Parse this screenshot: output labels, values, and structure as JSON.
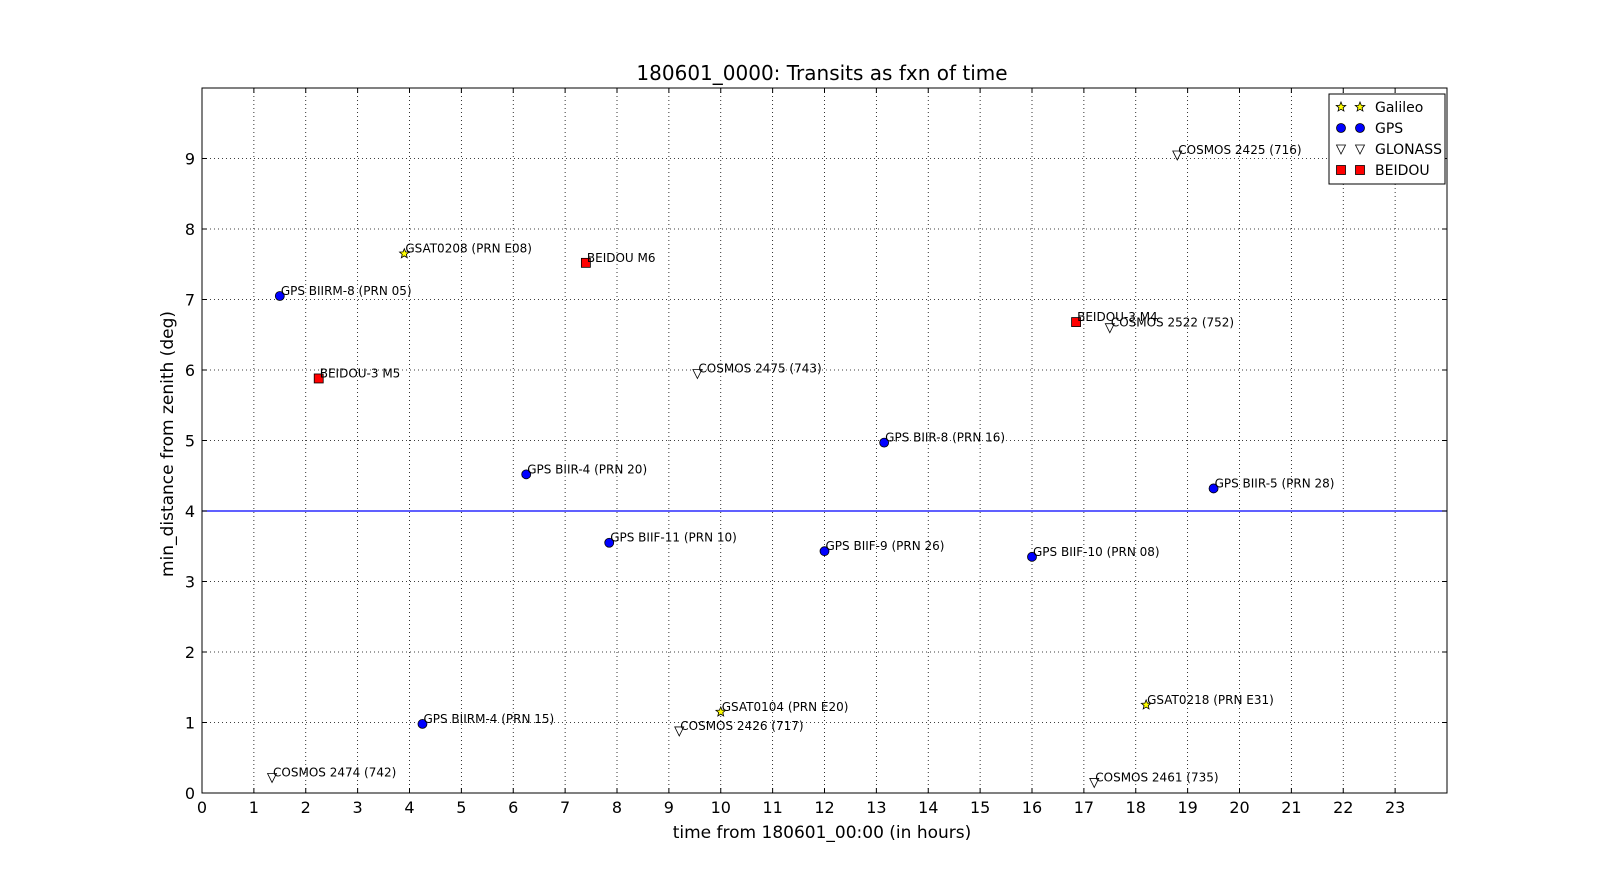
{
  "chart_data": {
    "type": "scatter",
    "title": "180601_0000: Transits as fxn of time",
    "xlabel": "time from 180601_00:00 (in hours)",
    "ylabel": "min_distance from zenith (deg)",
    "xlim": [
      0,
      24
    ],
    "ylim": [
      0,
      10
    ],
    "xticks": [
      0,
      1,
      2,
      3,
      4,
      5,
      6,
      7,
      8,
      9,
      10,
      11,
      12,
      13,
      14,
      15,
      16,
      17,
      18,
      19,
      20,
      21,
      22,
      23
    ],
    "yticks": [
      0,
      1,
      2,
      3,
      4,
      5,
      6,
      7,
      8,
      9
    ],
    "grid": true,
    "threshold_line": {
      "y": 4,
      "color": "#0000ff"
    },
    "legend_position": "top-right",
    "series": [
      {
        "name": "Galileo",
        "marker": "star",
        "color": "#ffff00",
        "points": [
          {
            "x": 3.9,
            "y": 7.65,
            "label": "GSAT0208 (PRN E08)"
          },
          {
            "x": 10.0,
            "y": 1.15,
            "label": "GSAT0104 (PRN E20)"
          },
          {
            "x": 18.2,
            "y": 1.25,
            "label": "GSAT0218 (PRN E31)"
          }
        ]
      },
      {
        "name": "GPS",
        "marker": "circle",
        "color": "#0000ff",
        "points": [
          {
            "x": 1.5,
            "y": 7.05,
            "label": "GPS BIIRM-8 (PRN 05)"
          },
          {
            "x": 4.25,
            "y": 0.98,
            "label": "GPS BIIRM-4 (PRN 15)"
          },
          {
            "x": 6.25,
            "y": 4.52,
            "label": "GPS BIIR-4  (PRN 20)"
          },
          {
            "x": 7.85,
            "y": 3.55,
            "label": "GPS BIIF-11  (PRN 10)"
          },
          {
            "x": 12.0,
            "y": 3.43,
            "label": "GPS BIIF-9  (PRN 26)"
          },
          {
            "x": 13.15,
            "y": 4.97,
            "label": "GPS BIIR-8  (PRN 16)"
          },
          {
            "x": 16.0,
            "y": 3.35,
            "label": "GPS BIIF-10  (PRN 08)"
          },
          {
            "x": 19.5,
            "y": 4.32,
            "label": "GPS BIIR-5  (PRN 28)"
          }
        ]
      },
      {
        "name": "GLONASS",
        "marker": "triangle-down",
        "color": "#ffffff",
        "points": [
          {
            "x": 1.35,
            "y": 0.22,
            "label": "COSMOS 2474 (742)"
          },
          {
            "x": 9.2,
            "y": 0.88,
            "label": "COSMOS 2426 (717)"
          },
          {
            "x": 9.55,
            "y": 5.95,
            "label": "COSMOS 2475 (743)"
          },
          {
            "x": 17.2,
            "y": 0.15,
            "label": "COSMOS 2461 (735)"
          },
          {
            "x": 17.5,
            "y": 6.6,
            "label": "COSMOS 2522 (752)"
          },
          {
            "x": 18.8,
            "y": 9.05,
            "label": "COSMOS 2425 (716)"
          }
        ]
      },
      {
        "name": "BEIDOU",
        "marker": "square",
        "color": "#ff0000",
        "points": [
          {
            "x": 2.25,
            "y": 5.88,
            "label": "BEIDOU-3 M5"
          },
          {
            "x": 7.4,
            "y": 7.52,
            "label": "BEIDOU M6"
          },
          {
            "x": 16.85,
            "y": 6.68,
            "label": "BEIDOU-3 M4"
          }
        ]
      }
    ]
  }
}
